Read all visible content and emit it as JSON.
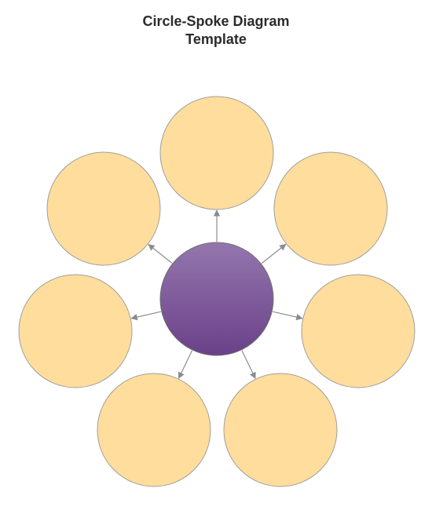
{
  "title": {
    "line1": "Circle-Spoke Diagram",
    "line2": "Template"
  },
  "diagram": {
    "center": {
      "name": "center-circle"
    },
    "spokes": [
      {
        "name": "spoke-circle-top"
      },
      {
        "name": "spoke-circle-top-right"
      },
      {
        "name": "spoke-circle-right"
      },
      {
        "name": "spoke-circle-bottom-right"
      },
      {
        "name": "spoke-circle-bottom-left"
      },
      {
        "name": "spoke-circle-left"
      },
      {
        "name": "spoke-circle-top-left"
      }
    ],
    "colors": {
      "spoke_fill": "#FFDD9C",
      "spoke_stroke": "#9E9E9E",
      "center_top": "#9476AD",
      "center_bottom": "#6A4189",
      "center_stroke": "#6F6F6F",
      "arrow": "#8C8C8C"
    }
  }
}
